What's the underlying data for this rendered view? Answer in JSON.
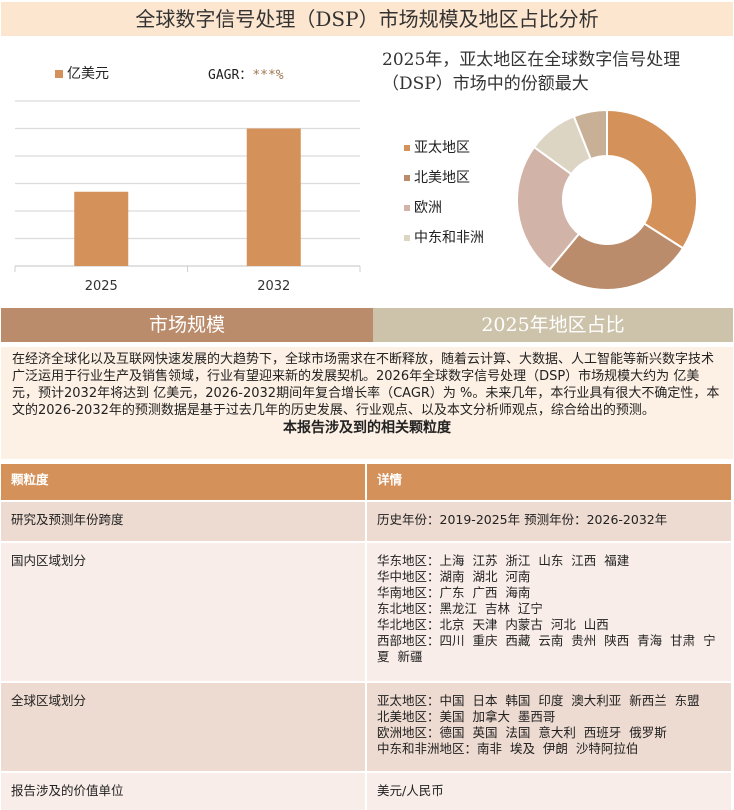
{
  "title": "全球数字信号处理（DSP）市场规模及地区占比分析",
  "bar_chart": {
    "legend": "亿美元",
    "cagr_label": "GAGR：",
    "cagr_value": "***%",
    "color": "#d4915a"
  },
  "pie_title": "2025年，亚太地区在全球数字信号处理（DSP）市场中的份额最大",
  "sections": {
    "left": "市场规模",
    "right": "2025年地区占比",
    "left_color": "#bb8c6b",
    "right_color": "#cdc3aa"
  },
  "intro": "在经济全球化以及互联网快速发展的大趋势下，全球市场需求在不断释放，随着云计算、大数据、人工智能等新兴数字技术广泛运用于行业生产及销售领域，行业有望迎来新的发展契机。2026年全球数字信号处理（DSP）市场规模大约为 亿美元，预计2032年将达到 亿美元，2026-2032期间年复合增长率（CAGR）为 %。未来几年，本行业具有很大不确定性，本文的2026-2032年的预测数据是基于过去几年的历史发展、行业观点、以及本文分析师观点，综合给出的预测。",
  "table": {
    "caption": "本报告涉及到的相关颗粒度",
    "headers": [
      "颗粒度",
      "详情"
    ],
    "rows": [
      {
        "label": "研究及预测年份跨度",
        "lines": [
          "历史年份：2019-2025年 预测年份：2026-2032年"
        ]
      },
      {
        "label": "国内区域划分",
        "lines": [
          "华东地区：上海  江苏  浙江  山东  江西  福建",
          "华中地区：湖南  湖北  河南",
          "华南地区：广东  广西  海南",
          "东北地区：黑龙江  吉林  辽宁",
          "华北地区：北京  天津  内蒙古  河北  山西",
          "西部地区：四川  重庆  西藏  云南  贵州  陕西  青海  甘肃  宁夏  新疆"
        ]
      },
      {
        "label": "全球区域划分",
        "lines": [
          "亚太地区：中国  日本  韩国  印度  澳大利亚  新西兰  东盟",
          "北美地区：美国  加拿大  墨西哥",
          "欧洲地区：德国  英国  法国  意大利  西班牙  俄罗斯",
          "中东和非洲地区：南非  埃及  伊朗  沙特阿拉伯"
        ]
      },
      {
        "label": "报告涉及的价值单位",
        "lines": [
          "美元/人民币"
        ]
      }
    ]
  },
  "chart_data": [
    {
      "type": "bar",
      "categories": [
        "2025",
        "2032"
      ],
      "values": [
        2.7,
        5.0
      ],
      "ylim": [
        0,
        6
      ],
      "grid": true,
      "legend": "亿美元",
      "legend_position": "top-left"
    },
    {
      "type": "pie",
      "donut": true,
      "categories": [
        "亚太地区",
        "北美地区",
        "欧洲",
        "中东和非洲",
        ""
      ],
      "values": [
        34,
        27,
        24,
        9,
        6
      ],
      "colors": [
        "#d4915a",
        "#bb8c6b",
        "#d2b3a8",
        "#ddd5c4",
        "#c8b096"
      ],
      "legend_position": "left"
    }
  ]
}
